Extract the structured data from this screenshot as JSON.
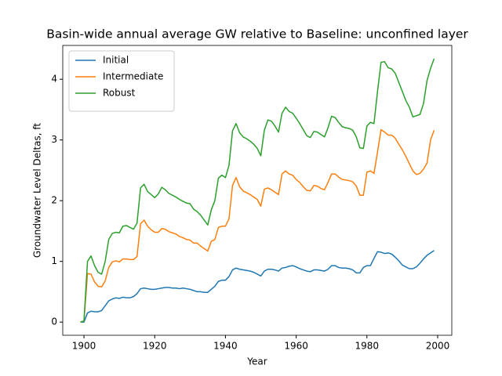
{
  "chart_data": {
    "type": "line",
    "title": "Basin-wide annual average GW relative to Baseline: unconfined layer",
    "x_label": "Year",
    "y_label": "Groundwater Level Deltas, ft",
    "x": [
      1899,
      1900,
      1901,
      1902,
      1903,
      1904,
      1905,
      1906,
      1907,
      1908,
      1909,
      1910,
      1911,
      1912,
      1913,
      1914,
      1915,
      1916,
      1917,
      1918,
      1919,
      1920,
      1921,
      1922,
      1923,
      1924,
      1925,
      1926,
      1927,
      1928,
      1929,
      1930,
      1931,
      1932,
      1933,
      1934,
      1935,
      1936,
      1937,
      1938,
      1939,
      1940,
      1941,
      1942,
      1943,
      1944,
      1945,
      1946,
      1947,
      1948,
      1949,
      1950,
      1951,
      1952,
      1953,
      1954,
      1955,
      1956,
      1957,
      1958,
      1959,
      1960,
      1961,
      1962,
      1963,
      1964,
      1965,
      1966,
      1967,
      1968,
      1969,
      1970,
      1971,
      1972,
      1973,
      1974,
      1975,
      1976,
      1977,
      1978,
      1979,
      1980,
      1981,
      1982,
      1983,
      1984,
      1985,
      1986,
      1987,
      1988,
      1989,
      1990,
      1991,
      1992,
      1993,
      1994,
      1995,
      1996,
      1997,
      1998,
      1999
    ],
    "series": [
      {
        "name": "Initial",
        "color": "#1f77b4",
        "values": [
          0,
          0,
          0.15,
          0.18,
          0.17,
          0.17,
          0.19,
          0.27,
          0.35,
          0.38,
          0.4,
          0.39,
          0.41,
          0.4,
          0.4,
          0.42,
          0.47,
          0.55,
          0.56,
          0.55,
          0.54,
          0.54,
          0.55,
          0.56,
          0.57,
          0.57,
          0.56,
          0.56,
          0.55,
          0.56,
          0.55,
          0.54,
          0.52,
          0.5,
          0.5,
          0.49,
          0.49,
          0.54,
          0.59,
          0.67,
          0.69,
          0.69,
          0.75,
          0.86,
          0.89,
          0.87,
          0.86,
          0.85,
          0.84,
          0.82,
          0.79,
          0.76,
          0.84,
          0.87,
          0.87,
          0.86,
          0.84,
          0.89,
          0.9,
          0.92,
          0.93,
          0.91,
          0.88,
          0.86,
          0.84,
          0.83,
          0.86,
          0.86,
          0.85,
          0.84,
          0.87,
          0.93,
          0.93,
          0.9,
          0.89,
          0.89,
          0.88,
          0.86,
          0.81,
          0.81,
          0.9,
          0.93,
          0.93,
          1.05,
          1.16,
          1.15,
          1.13,
          1.14,
          1.12,
          1.07,
          1.01,
          0.94,
          0.91,
          0.88,
          0.88,
          0.91,
          0.97,
          1.04,
          1.1,
          1.14,
          1.18
        ]
      },
      {
        "name": "Intermediate",
        "color": "#ff7f0e",
        "values": [
          0,
          0.02,
          0.8,
          0.79,
          0.66,
          0.59,
          0.58,
          0.68,
          0.9,
          0.99,
          1.01,
          0.99,
          1.04,
          1.04,
          1.03,
          1.03,
          1.08,
          1.62,
          1.68,
          1.58,
          1.52,
          1.48,
          1.48,
          1.54,
          1.53,
          1.49,
          1.47,
          1.45,
          1.41,
          1.39,
          1.36,
          1.35,
          1.3,
          1.3,
          1.25,
          1.21,
          1.17,
          1.33,
          1.36,
          1.56,
          1.58,
          1.58,
          1.7,
          2.25,
          2.38,
          2.23,
          2.16,
          2.13,
          2.1,
          2.06,
          2.02,
          1.91,
          2.19,
          2.21,
          2.18,
          2.14,
          2.1,
          2.44,
          2.49,
          2.44,
          2.42,
          2.35,
          2.3,
          2.23,
          2.17,
          2.16,
          2.25,
          2.24,
          2.2,
          2.18,
          2.3,
          2.44,
          2.44,
          2.39,
          2.35,
          2.34,
          2.33,
          2.31,
          2.24,
          2.09,
          2.09,
          2.47,
          2.49,
          2.45,
          2.8,
          3.17,
          3.13,
          3.08,
          3.08,
          3.03,
          2.93,
          2.84,
          2.73,
          2.61,
          2.49,
          2.43,
          2.45,
          2.52,
          2.62,
          3.0,
          3.16
        ]
      },
      {
        "name": "Robust",
        "color": "#2ca02c",
        "values": [
          0,
          0.02,
          1.0,
          1.09,
          0.93,
          0.82,
          0.79,
          1.0,
          1.36,
          1.46,
          1.48,
          1.47,
          1.58,
          1.59,
          1.56,
          1.53,
          1.63,
          2.21,
          2.27,
          2.15,
          2.1,
          2.05,
          2.11,
          2.22,
          2.18,
          2.12,
          2.09,
          2.06,
          2.02,
          1.99,
          1.96,
          1.95,
          1.86,
          1.82,
          1.76,
          1.68,
          1.6,
          1.85,
          2.0,
          2.37,
          2.42,
          2.38,
          2.58,
          3.15,
          3.27,
          3.12,
          3.05,
          3.02,
          2.98,
          2.93,
          2.86,
          2.74,
          3.16,
          3.33,
          3.31,
          3.23,
          3.13,
          3.44,
          3.54,
          3.47,
          3.44,
          3.36,
          3.27,
          3.17,
          3.07,
          3.04,
          3.14,
          3.13,
          3.09,
          3.05,
          3.2,
          3.39,
          3.37,
          3.29,
          3.22,
          3.2,
          3.19,
          3.16,
          3.05,
          2.87,
          2.86,
          3.23,
          3.29,
          3.27,
          3.8,
          4.28,
          4.29,
          4.19,
          4.17,
          4.1,
          3.95,
          3.8,
          3.65,
          3.54,
          3.38,
          3.4,
          3.42,
          3.6,
          3.98,
          4.18,
          4.34
        ]
      }
    ],
    "xlim": [
      1894,
      2004
    ],
    "xticks": [
      1900,
      1920,
      1940,
      1960,
      1980,
      2000
    ],
    "ylim": [
      -0.217,
      4.557
    ],
    "yticks": [
      0,
      1,
      2,
      3,
      4
    ],
    "grid": false,
    "legend": "upper left"
  }
}
